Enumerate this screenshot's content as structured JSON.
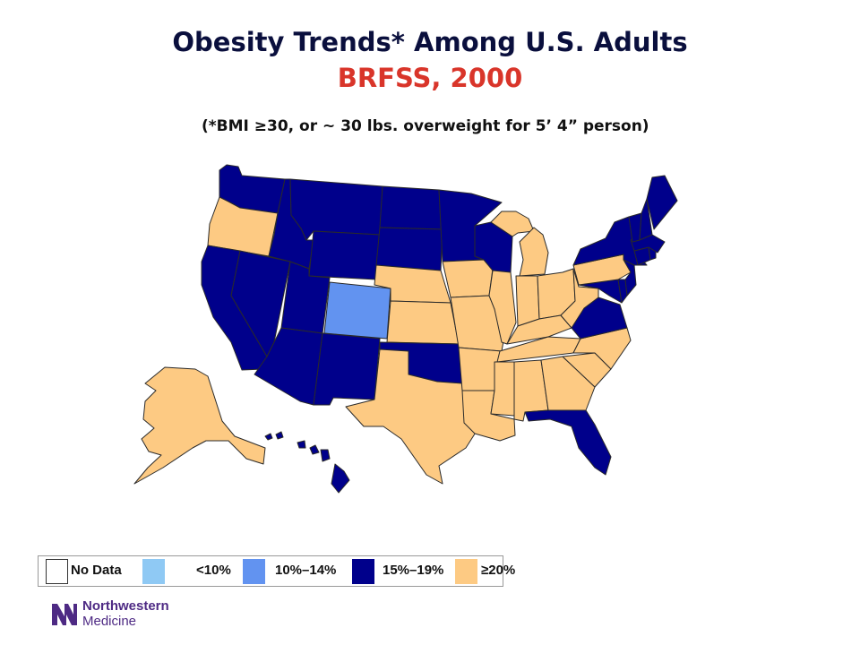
{
  "title": "Obesity Trends* Among U.S. Adults",
  "subtitle": "BRFSS, 2000",
  "footnote": "(*BMI ≥30, or ~ 30 lbs. overweight for 5’ 4” person)",
  "legend": [
    {
      "key": "nodata",
      "label": "No Data",
      "color": "#ffffff"
    },
    {
      "key": "lt10",
      "label": "<10%",
      "color": "#8fc9f4"
    },
    {
      "key": "r10_14",
      "label": "10%–14%",
      "color": "#6293f0"
    },
    {
      "key": "r15_19",
      "label": "15%–19%",
      "color": "#00008b"
    },
    {
      "key": "ge20",
      "label": "≥20%",
      "color": "#fdca83"
    }
  ],
  "map_data": {
    "type": "choropleth",
    "region": "United States",
    "states": {
      "WA": "r15_19",
      "OR": "ge20",
      "CA": "r15_19",
      "NV": "r15_19",
      "ID": "r15_19",
      "MT": "r15_19",
      "WY": "r15_19",
      "UT": "r15_19",
      "AZ": "r15_19",
      "CO": "r10_14",
      "NM": "r15_19",
      "ND": "r15_19",
      "SD": "r15_19",
      "NE": "ge20",
      "KS": "ge20",
      "OK": "r15_19",
      "TX": "ge20",
      "MN": "r15_19",
      "IA": "ge20",
      "MO": "ge20",
      "AR": "ge20",
      "LA": "ge20",
      "WI": "r15_19",
      "IL": "ge20",
      "MI": "ge20",
      "IN": "ge20",
      "OH": "ge20",
      "KY": "ge20",
      "TN": "ge20",
      "MS": "ge20",
      "AL": "ge20",
      "GA": "ge20",
      "FL": "r15_19",
      "SC": "ge20",
      "NC": "ge20",
      "VA": "r15_19",
      "WV": "ge20",
      "PA": "ge20",
      "NY": "r15_19",
      "VT": "r15_19",
      "NH": "r15_19",
      "ME": "r15_19",
      "MA": "r15_19",
      "RI": "r15_19",
      "CT": "r15_19",
      "NJ": "r15_19",
      "DE": "r15_19",
      "MD": "r15_19",
      "AK": "ge20",
      "HI": "r15_19"
    }
  },
  "logo": {
    "line1": "Northwestern",
    "line2": "Medicine",
    "color": "#4e2a84"
  }
}
